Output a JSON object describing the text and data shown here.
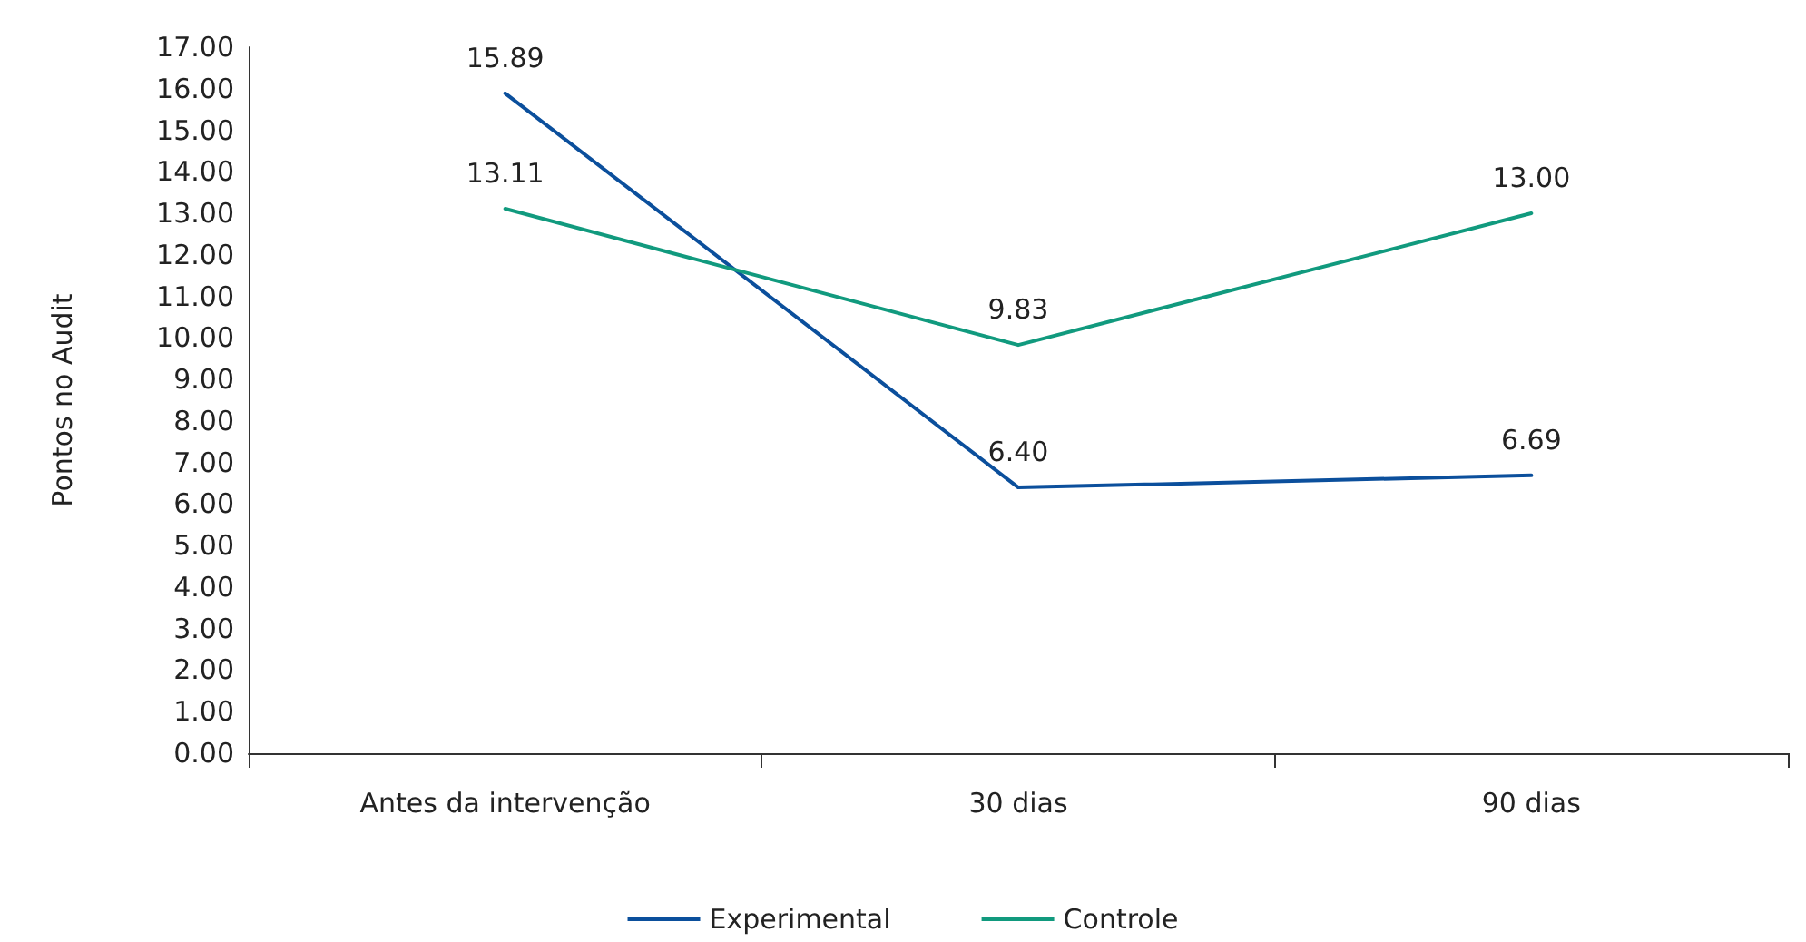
{
  "chart_data": {
    "type": "line",
    "ylabel": "Pontos no Audit",
    "categories": [
      "Antes da intervenção",
      "30 dias",
      "90 dias"
    ],
    "series": [
      {
        "name": "Experimental",
        "color": "#0b4f9c",
        "values": [
          15.89,
          6.4,
          6.69
        ],
        "value_labels": [
          "15.89",
          "6.40",
          "6.69"
        ]
      },
      {
        "name": "Controle",
        "color": "#119a7e",
        "values": [
          13.11,
          9.83,
          13.0
        ],
        "value_labels": [
          "13.11",
          "9.83",
          "13.00"
        ]
      }
    ],
    "ylim": [
      0,
      17
    ],
    "yticks": [
      {
        "value": 0,
        "label": "0.00"
      },
      {
        "value": 1,
        "label": "1.00"
      },
      {
        "value": 2,
        "label": "2.00"
      },
      {
        "value": 3,
        "label": "3.00"
      },
      {
        "value": 4,
        "label": "4.00"
      },
      {
        "value": 5,
        "label": "5.00"
      },
      {
        "value": 6,
        "label": "6.00"
      },
      {
        "value": 7,
        "label": "7.00"
      },
      {
        "value": 8,
        "label": "8.00"
      },
      {
        "value": 9,
        "label": "9.00"
      },
      {
        "value": 10,
        "label": "10.00"
      },
      {
        "value": 11,
        "label": "11.00"
      },
      {
        "value": 12,
        "label": "12.00"
      },
      {
        "value": 13,
        "label": "13.00"
      },
      {
        "value": 14,
        "label": "14.00"
      },
      {
        "value": 15,
        "label": "15.00"
      },
      {
        "value": 16,
        "label": "16.00"
      },
      {
        "value": 17,
        "label": "17.00"
      }
    ],
    "grid": false,
    "legend": "bottom",
    "marker": "none",
    "line_style": "solid"
  }
}
